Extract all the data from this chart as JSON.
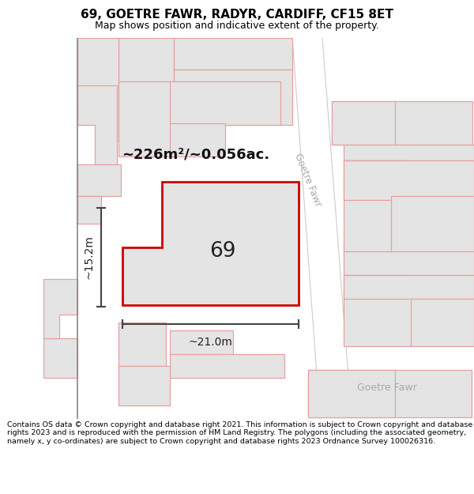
{
  "title": "69, GOETRE FAWR, RADYR, CARDIFF, CF15 8ET",
  "subtitle": "Map shows position and indicative extent of the property.",
  "footer": "Contains OS data © Crown copyright and database right 2021. This information is subject to Crown copyright and database rights 2023 and is reproduced with the permission of HM Land Registry. The polygons (including the associated geometry, namely x, y co-ordinates) are subject to Crown copyright and database rights 2023 Ordnance Survey 100026316.",
  "map_bg": "#ffffff",
  "building_fill": "#e4e4e4",
  "building_edge": "#e8a0a0",
  "property_fill": "#e4e4e4",
  "property_edge": "#cc0000",
  "property_lw": 2.0,
  "dim_color": "#444444",
  "area_text": "~226m²/~0.056ac.",
  "width_label": "~21.0m",
  "height_label": "~15.2m",
  "number_label": "69",
  "street_label_diag": "Goetre Fawr",
  "street_label_horiz": "Goetre Fawr",
  "title_fontsize": 11,
  "subtitle_fontsize": 9,
  "footer_fontsize": 6.8
}
